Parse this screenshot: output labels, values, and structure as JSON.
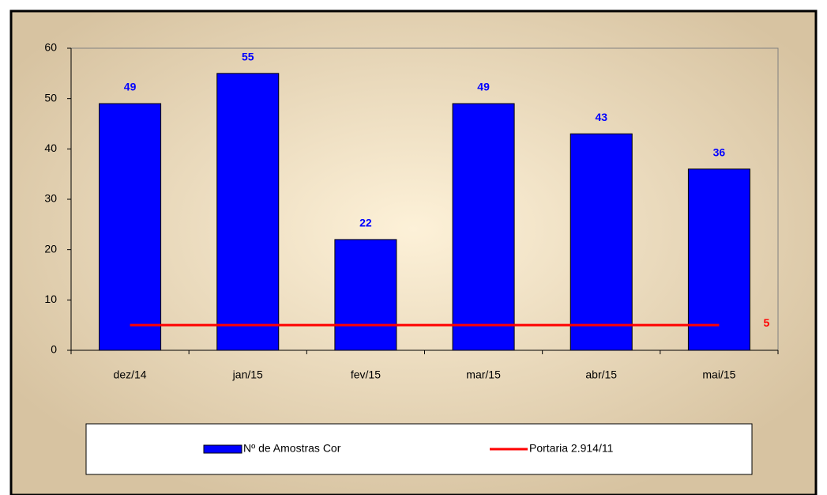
{
  "chart_data": {
    "type": "bar",
    "categories": [
      "dez/14",
      "jan/15",
      "fev/15",
      "mar/15",
      "abr/15",
      "mai/15"
    ],
    "series": [
      {
        "name": "Nº de Amostras Cor",
        "color": "#0000ff",
        "values": [
          49,
          55,
          22,
          49,
          43,
          36
        ]
      },
      {
        "name": "Portaria 2.914/11",
        "color": "#ff0000",
        "type": "line",
        "values": [
          5,
          5,
          5,
          5,
          5,
          5
        ]
      }
    ],
    "ylim": [
      0,
      60
    ],
    "yticks": [
      0,
      10,
      20,
      30,
      40,
      50,
      60
    ],
    "grid": false,
    "legend": "bottom"
  }
}
